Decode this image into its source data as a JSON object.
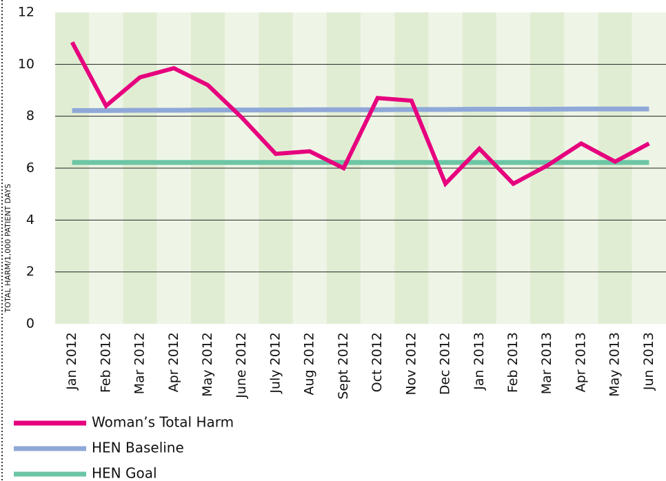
{
  "chart_data": {
    "type": "line",
    "y_label": "TOTAL HARM/1,000 PATIENT DAYS",
    "categories": [
      "Jan 2012",
      "Feb 2012",
      "Mar 2012",
      "Apr 2012",
      "May 2012",
      "June 2012",
      "July 2012",
      "Aug 2012",
      "Sept 2012",
      "Oct 2012",
      "Nov 2012",
      "Dec 2012",
      "Jan 2013",
      "Feb 2013",
      "Mar 2013",
      "Apr 2013",
      "May 2013",
      "Jun 2013"
    ],
    "series": [
      {
        "name": "Woman’s Total Harm",
        "color": "#e6007e",
        "values": [
          10.85,
          8.4,
          9.5,
          9.85,
          9.2,
          7.95,
          6.55,
          6.65,
          6.0,
          8.7,
          8.6,
          5.4,
          6.75,
          5.4,
          6.1,
          6.95,
          6.25,
          6.95
        ]
      },
      {
        "name": "HEN Baseline",
        "color": "#8fa8d8",
        "values": [
          8.22,
          8.22,
          8.23,
          8.23,
          8.24,
          8.24,
          8.24,
          8.25,
          8.25,
          8.25,
          8.26,
          8.26,
          8.27,
          8.27,
          8.27,
          8.28,
          8.28,
          8.28
        ]
      },
      {
        "name": "HEN Goal",
        "color": "#6cc6a6",
        "values": [
          6.22,
          6.22,
          6.22,
          6.22,
          6.22,
          6.22,
          6.22,
          6.22,
          6.22,
          6.22,
          6.22,
          6.22,
          6.22,
          6.22,
          6.22,
          6.22,
          6.22,
          6.22
        ]
      }
    ],
    "ylim": [
      0,
      12
    ],
    "yticks": [
      0,
      2,
      4,
      6,
      8,
      10,
      12
    ],
    "grid": true
  }
}
